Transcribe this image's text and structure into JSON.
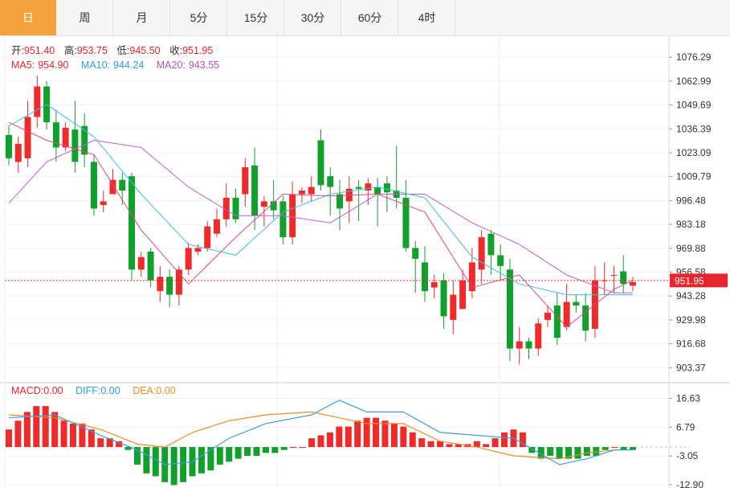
{
  "tabs": [
    {
      "label": "日",
      "active": true
    },
    {
      "label": "周"
    },
    {
      "label": "月"
    },
    {
      "label": "5分"
    },
    {
      "label": "15分"
    },
    {
      "label": "30分"
    },
    {
      "label": "60分"
    },
    {
      "label": "4时"
    }
  ],
  "ohlc_info": {
    "open_label": "开:",
    "open": "951.40",
    "high_label": "高:",
    "high": "953.75",
    "low_label": "低:",
    "low": "945.50",
    "close_label": "收:",
    "close": "951.95"
  },
  "ma_info": {
    "ma5_label": "MA5:",
    "ma5": "954.90",
    "ma10_label": "MA10:",
    "ma10": "944.24",
    "ma20_label": "MA20:",
    "ma20": "943.55"
  },
  "macd_info": {
    "macd_label": "MACD:",
    "macd": "0.00",
    "diff_label": "DIFF:",
    "diff": "0.00",
    "dea_label": "DEA:",
    "dea": "0.00"
  },
  "colors": {
    "up": "#ee2a2a",
    "down": "#12a02c",
    "ma5": "#e0487c",
    "ma10": "#3fc1d6",
    "ma20": "#c25ec8",
    "diff": "#3f9be0",
    "dea": "#f08a24",
    "label_red": "#e8242e",
    "label_blue": "#2c9ce0",
    "label_purple": "#b253c0"
  },
  "chart_data": [
    {
      "type": "candlestick",
      "price_tag": "951.95",
      "ylim": [
        895,
        1088
      ],
      "y_ticks": [
        "1076.29",
        "1062.99",
        "1049.69",
        "1036.39",
        "1023.09",
        "1009.79",
        "996.48",
        "983.18",
        "969.88",
        "956.58",
        "943.28",
        "929.98",
        "916.68",
        "903.37"
      ],
      "candles": [
        [
          1033,
          1020,
          1038,
          1016
        ],
        [
          1018,
          1028,
          1032,
          1012
        ],
        [
          1020,
          1043,
          1052,
          1015
        ],
        [
          1043,
          1060,
          1066,
          1037
        ],
        [
          1060,
          1040,
          1063,
          1036
        ],
        [
          1040,
          1026,
          1047,
          1018
        ],
        [
          1026,
          1037,
          1040,
          1024
        ],
        [
          1036,
          1018,
          1052,
          1012
        ],
        [
          1038,
          1022,
          1045,
          1015
        ],
        [
          1018,
          992,
          1022,
          988
        ],
        [
          994,
          996,
          1002,
          990
        ],
        [
          1000,
          1008,
          1014,
          1000
        ],
        [
          1008,
          1002,
          1012,
          994
        ],
        [
          1010,
          958,
          1012,
          952
        ],
        [
          958,
          965,
          968,
          954
        ],
        [
          968,
          952,
          970,
          948
        ],
        [
          946,
          954,
          960,
          940
        ],
        [
          954,
          944,
          958,
          937
        ],
        [
          944,
          958,
          960,
          938
        ],
        [
          958,
          970,
          973,
          955
        ],
        [
          968,
          970,
          972,
          966
        ],
        [
          970,
          982,
          985,
          968
        ],
        [
          978,
          986,
          992,
          976
        ],
        [
          986,
          998,
          1006,
          982
        ],
        [
          998,
          986,
          1003,
          984
        ],
        [
          1000,
          1015,
          1020,
          993
        ],
        [
          1016,
          988,
          1026,
          980
        ],
        [
          993,
          996,
          999,
          982
        ],
        [
          996,
          991,
          1008,
          986
        ],
        [
          996,
          976,
          999,
          972
        ],
        [
          976,
          1000,
          1007,
          972
        ],
        [
          1000,
          1002,
          1004,
          995
        ],
        [
          1000,
          1004,
          1010,
          996
        ],
        [
          1030,
          1005,
          1036,
          1002
        ],
        [
          1010,
          1004,
          1015,
          988
        ],
        [
          1000,
          992,
          1008,
          980
        ],
        [
          996,
          1003,
          1010,
          984
        ],
        [
          1004,
          1003,
          1008,
          985
        ],
        [
          1002,
          1006,
          1009,
          994
        ],
        [
          1004,
          1000,
          1009,
          982
        ],
        [
          1006,
          1001,
          1010,
          990
        ],
        [
          1002,
          998,
          1027,
          992
        ],
        [
          998,
          970,
          1008,
          968
        ],
        [
          970,
          964,
          974,
          945
        ],
        [
          962,
          946,
          971,
          940
        ],
        [
          948,
          951,
          955,
          942
        ],
        [
          952,
          932,
          956,
          925
        ],
        [
          930,
          944,
          952,
          922
        ],
        [
          936,
          952,
          958,
          936
        ],
        [
          946,
          962,
          970,
          942
        ],
        [
          958,
          976,
          980,
          950
        ],
        [
          978,
          966,
          980,
          955
        ],
        [
          966,
          960,
          972,
          952
        ],
        [
          958,
          914,
          964,
          907
        ],
        [
          914,
          918,
          926,
          905
        ],
        [
          918,
          914,
          920,
          908
        ],
        [
          914,
          928,
          931,
          910
        ],
        [
          930,
          934,
          938,
          926
        ],
        [
          938,
          920,
          945,
          916
        ],
        [
          926,
          940,
          950,
          924
        ],
        [
          940,
          938,
          944,
          934
        ],
        [
          938,
          924,
          945,
          918
        ],
        [
          925,
          952,
          960,
          920
        ],
        [
          952,
          952,
          962,
          944
        ],
        [
          955,
          955,
          960,
          945
        ],
        [
          957,
          950,
          966,
          945
        ],
        [
          949,
          951,
          954,
          946
        ]
      ],
      "ma5_x": [
        0,
        4,
        9,
        14,
        19,
        24,
        29,
        34,
        39,
        44,
        49,
        54,
        59,
        64,
        66
      ],
      "ma5_y": [
        1040,
        1030,
        1022,
        980,
        950,
        976,
        1000,
        999,
        1000,
        990,
        948,
        955,
        926,
        947,
        952
      ],
      "ma10_x": [
        0,
        4,
        9,
        14,
        19,
        24,
        29,
        34,
        39,
        44,
        49,
        54,
        59,
        64,
        66
      ],
      "ma10_y": [
        1038,
        1050,
        1032,
        1000,
        972,
        966,
        990,
        1000,
        1004,
        998,
        965,
        950,
        944,
        944,
        944
      ],
      "ma20_x": [
        0,
        4,
        9,
        14,
        19,
        24,
        29,
        34,
        39,
        44,
        49,
        54,
        59,
        64,
        66
      ],
      "ma20_y": [
        995,
        1018,
        1030,
        1026,
        1004,
        988,
        988,
        984,
        1000,
        1000,
        984,
        972,
        955,
        945,
        945
      ]
    },
    {
      "type": "macd",
      "ylim": [
        -14,
        22
      ],
      "y_ticks": [
        "16.63",
        "6.79",
        "-3.05",
        "-12.90"
      ],
      "macd": [
        6,
        9,
        12,
        14,
        14,
        12,
        9,
        8,
        8,
        6,
        3,
        3,
        2,
        -1,
        -6,
        -9,
        -10,
        -12,
        -13,
        -12,
        -10,
        -9,
        -8,
        -6,
        -5,
        -4,
        -3,
        -3,
        -2,
        -2,
        -1,
        0,
        0,
        3,
        4,
        5,
        7,
        7,
        9,
        10,
        10,
        9,
        8,
        7,
        5,
        3,
        2,
        2,
        1,
        1,
        1,
        2,
        1,
        3,
        5,
        6,
        5,
        -2,
        -4,
        -3,
        -4,
        -4,
        -4,
        -3,
        -3,
        -1,
        0,
        -1,
        -1
      ],
      "diff_x": [
        0,
        5,
        10,
        14,
        17,
        20,
        24,
        28,
        33,
        36,
        39,
        43,
        47,
        51,
        55,
        60,
        63,
        66,
        68
      ],
      "diff_y": [
        10,
        11,
        4,
        -1,
        -6,
        -5,
        3,
        8,
        11,
        16,
        12,
        12,
        5,
        4,
        3,
        -6,
        -4,
        -1,
        -1
      ],
      "dea_x": [
        0,
        5,
        10,
        14,
        17,
        20,
        24,
        28,
        33,
        36,
        39,
        43,
        47,
        51,
        55,
        60,
        63,
        66,
        68
      ],
      "dea_y": [
        11,
        10,
        6,
        1,
        0,
        5,
        9,
        11,
        12,
        10,
        8,
        8,
        2,
        0,
        -3,
        -4,
        -2,
        -1,
        -1
      ]
    }
  ]
}
